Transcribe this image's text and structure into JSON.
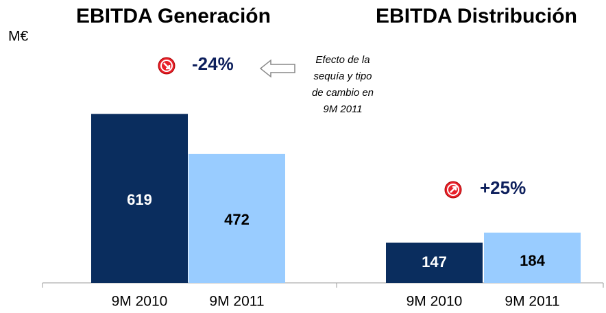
{
  "unit": "M€",
  "chart_data": [
    {
      "type": "bar",
      "title": "EBITDA Generación",
      "categories": [
        "9M 2010",
        "9M 2011"
      ],
      "values": [
        619,
        472
      ],
      "colors": [
        "#0a2d5e",
        "#99ccff"
      ],
      "label_colors": [
        "#ffffff",
        "#000000"
      ],
      "ylim": [
        0,
        700
      ],
      "change": "-24%",
      "trend": "down",
      "note": [
        "Efecto de la",
        "sequía y tipo",
        "de cambio en",
        "9M 2011"
      ]
    },
    {
      "type": "bar",
      "title": "EBITDA Distribución",
      "categories": [
        "9M 2010",
        "9M 2011"
      ],
      "values": [
        147,
        184
      ],
      "colors": [
        "#0a2d5e",
        "#99ccff"
      ],
      "label_colors": [
        "#ffffff",
        "#000000"
      ],
      "ylim": [
        0,
        700
      ],
      "change": "+25%",
      "trend": "up"
    }
  ]
}
